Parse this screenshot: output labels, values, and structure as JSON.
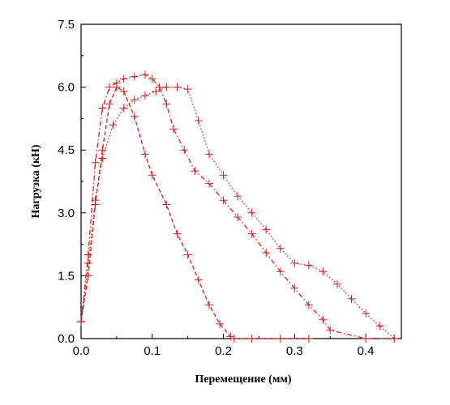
{
  "chart_data": {
    "type": "line",
    "xlabel": "Перемещение (мм)",
    "ylabel": "Нагрузка (кН)",
    "xlim": [
      0.0,
      0.45
    ],
    "ylim": [
      0.0,
      7.5
    ],
    "x_ticks": [
      0.0,
      0.1,
      0.2,
      0.3,
      0.4
    ],
    "x_tick_labels": [
      "0.0",
      "0.1",
      "0.2",
      "0.3",
      "0.4"
    ],
    "y_ticks": [
      0.0,
      1.5,
      3.0,
      4.5,
      6.0,
      7.5
    ],
    "y_tick_labels": [
      "0.0",
      "1.5",
      "3.0",
      "4.5",
      "6.0",
      "7.5"
    ],
    "grid": false,
    "legend": "none",
    "color": "#d42020",
    "series": [
      {
        "line_style": "dashed",
        "marker": "plus",
        "x": [
          0.0,
          0.01,
          0.02,
          0.03,
          0.04,
          0.05,
          0.06,
          0.075,
          0.09,
          0.1,
          0.12,
          0.135,
          0.15,
          0.165,
          0.18,
          0.195,
          0.21,
          0.215,
          0.24,
          0.28,
          0.32
        ],
        "y": [
          0.4,
          1.5,
          3.2,
          4.5,
          5.6,
          6.0,
          5.9,
          5.3,
          4.4,
          3.9,
          3.2,
          2.5,
          2.0,
          1.4,
          0.8,
          0.35,
          0.05,
          0.0,
          0.0,
          0.0,
          0.0
        ]
      },
      {
        "line_style": "dash-dot",
        "marker": "plus",
        "x": [
          0.0,
          0.01,
          0.02,
          0.03,
          0.04,
          0.05,
          0.06,
          0.075,
          0.09,
          0.1,
          0.11,
          0.12,
          0.13,
          0.145,
          0.16,
          0.18,
          0.2,
          0.22,
          0.24,
          0.26,
          0.28,
          0.3,
          0.32,
          0.34,
          0.35,
          0.4,
          0.44
        ],
        "y": [
          0.4,
          2.0,
          4.2,
          5.5,
          6.0,
          6.1,
          6.2,
          6.25,
          6.3,
          6.2,
          6.0,
          5.6,
          5.0,
          4.5,
          4.0,
          3.7,
          3.3,
          2.9,
          2.5,
          2.05,
          1.6,
          1.2,
          0.8,
          0.45,
          0.2,
          0.0,
          0.0
        ]
      },
      {
        "line_style": "dotted",
        "marker": "plus",
        "x": [
          0.0,
          0.01,
          0.02,
          0.03,
          0.045,
          0.06,
          0.075,
          0.09,
          0.105,
          0.12,
          0.135,
          0.15,
          0.165,
          0.18,
          0.2,
          0.22,
          0.24,
          0.26,
          0.28,
          0.3,
          0.32,
          0.34,
          0.36,
          0.38,
          0.4,
          0.42,
          0.44
        ],
        "y": [
          0.4,
          1.8,
          3.3,
          4.3,
          5.1,
          5.5,
          5.7,
          5.8,
          5.9,
          6.0,
          6.0,
          5.95,
          5.2,
          4.4,
          3.9,
          3.4,
          3.0,
          2.6,
          2.15,
          1.8,
          1.75,
          1.6,
          1.3,
          0.95,
          0.6,
          0.3,
          0.0
        ]
      }
    ]
  }
}
